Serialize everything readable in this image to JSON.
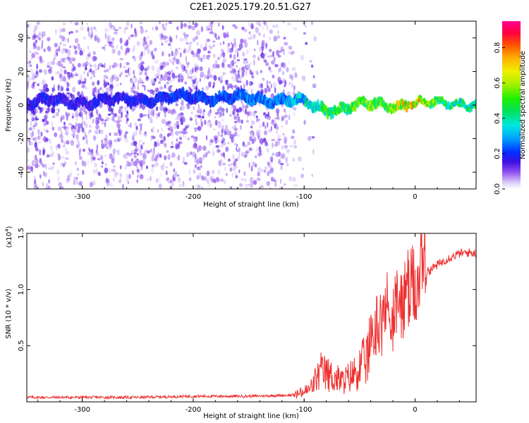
{
  "title": "C2E1.2025.179.20.51.G27",
  "chart_data": [
    {
      "type": "heatmap",
      "xlabel": "Height of straight line (km)",
      "ylabel": "Frequency (Hz)",
      "xlim": [
        -350,
        55
      ],
      "ylim": [
        -50,
        50
      ],
      "xticks": [
        -300,
        -200,
        -100,
        0
      ],
      "yticks": [
        -40,
        -20,
        0,
        20,
        40
      ],
      "colorbar": {
        "label": "Normalized spectral amplitude",
        "range": [
          0,
          0.95
        ],
        "ticks": [
          0.0,
          0.2,
          0.4,
          0.6,
          0.8
        ],
        "tick_labels": [
          "0.0",
          "0.2",
          "0.4",
          "0.6",
          "0.8"
        ]
      },
      "description_points": [
        {
          "x": -300,
          "center_freq": 2,
          "amplitude": 0.2
        },
        {
          "x": -200,
          "center_freq": 5,
          "amplitude": 0.25
        },
        {
          "x": -110,
          "center_freq": 3,
          "amplitude": 0.35
        },
        {
          "x": -80,
          "center_freq": -3,
          "amplitude": 0.55
        },
        {
          "x": -50,
          "center_freq": 0,
          "amplitude": 0.6
        },
        {
          "x": -20,
          "center_freq": 0,
          "amplitude": 0.7
        },
        {
          "x": 0,
          "center_freq": 1,
          "amplitude": 0.85
        },
        {
          "x": 30,
          "center_freq": 1,
          "amplitude": 0.5
        }
      ]
    },
    {
      "type": "line",
      "xlabel": "Height of straight line (km)",
      "ylabel": "SNR (10 * v/v)",
      "yscale_label": "(x10",
      "yscale_exp": "4",
      "yscale_close": ")",
      "xlim": [
        -350,
        55
      ],
      "ylim": [
        0,
        1.5
      ],
      "xticks": [
        -300,
        -200,
        -100,
        0
      ],
      "yticks": [
        0.5,
        1.0,
        1.5
      ],
      "ytick_labels": [
        "0.5",
        "1.0",
        "1.5"
      ],
      "series": [
        {
          "color": "#ee3030",
          "x": [
            -350,
            -300,
            -250,
            -200,
            -150,
            -110,
            -95,
            -85,
            -75,
            -65,
            -55,
            -45,
            -38,
            -32,
            -28,
            -24,
            -20,
            -15,
            -10,
            -5,
            0,
            5,
            10,
            20,
            30,
            40,
            50,
            55
          ],
          "values": [
            0.04,
            0.04,
            0.04,
            0.05,
            0.05,
            0.06,
            0.12,
            0.3,
            0.25,
            0.2,
            0.28,
            0.4,
            0.6,
            0.75,
            0.7,
            0.8,
            0.78,
            0.85,
            0.9,
            0.95,
            1.05,
            1.1,
            1.15,
            1.22,
            1.28,
            1.32,
            1.33,
            1.32
          ]
        }
      ]
    }
  ]
}
